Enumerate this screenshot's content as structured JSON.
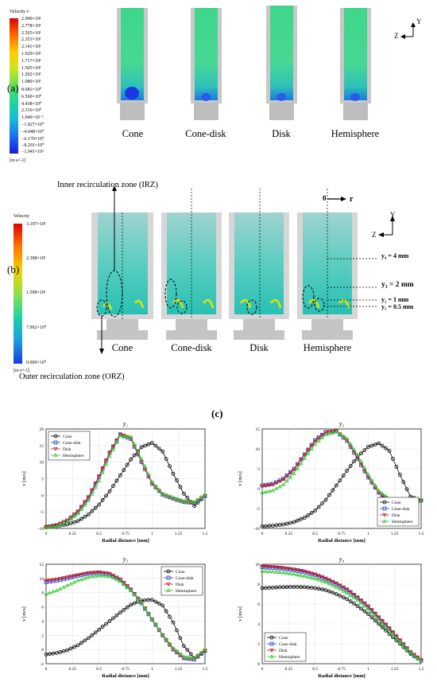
{
  "panel_a": {
    "letter": "(a)",
    "colorbar": {
      "title": "Velocity v",
      "unit": "[m s^-1]",
      "ticks": [
        "2.990×10¹",
        "2.778×10¹",
        "2.565×10¹",
        "2.353×10¹",
        "2.141×10¹",
        "1.929×10¹",
        "1.717×10¹",
        "1.505×10¹",
        "1.292×10¹",
        "1.080×10¹",
        "8.681×10⁰",
        "6.560×10⁰",
        "4.438×10⁰",
        "2.316×10⁰",
        "1.949×10⁻¹",
        "−1.927×10⁰",
        "−4.048×10⁰",
        "−6.170×10⁰",
        "−8.291×10⁰",
        "−1.041×10¹"
      ]
    },
    "labels": [
      "Cone",
      "Cone-disk",
      "Disk",
      "Hemisphere"
    ],
    "axis": {
      "y": "Y",
      "z": "Z"
    }
  },
  "panel_b": {
    "letter": "(b)",
    "colorbar": {
      "title": "Velocity",
      "unit": "[m s^-1]",
      "ticks": [
        "3.197×10¹",
        "2.398×10¹",
        "1.598×10¹",
        "7.992×10⁰",
        "0.000×10⁰"
      ]
    },
    "labels": [
      "Cone",
      "Cone-disk",
      "Disk",
      "Hemisphere"
    ],
    "irz": "Inner recirculation zone (IRZ)",
    "orz": "Outer recirculation zone (ORZ)",
    "origin": "0",
    "r": "r",
    "axis": {
      "y": "Y",
      "z": "Z"
    },
    "levels": [
      "y₄ = 4 mm",
      "y₃ = 2 mm",
      "y₂ = 1 mm",
      "y₁ = 0.5 mm"
    ]
  },
  "panel_c": {
    "letter": "(c)"
  },
  "chart_data": [
    {
      "type": "line",
      "title": "y₁",
      "xlabel": "Radial distance [mm]",
      "ylabel": "v [m/s]",
      "xlim": [
        0,
        1.5
      ],
      "ylim": [
        -10,
        20
      ],
      "xticks": [
        0,
        0.25,
        0.5,
        0.75,
        1,
        1.25,
        1.5
      ],
      "yticks": [
        -10,
        -5,
        0,
        5,
        10,
        15,
        20
      ],
      "legend": "top-left",
      "x": [
        0,
        0.1,
        0.2,
        0.3,
        0.4,
        0.5,
        0.6,
        0.7,
        0.8,
        0.9,
        1.0,
        1.1,
        1.2,
        1.3,
        1.4,
        1.5
      ],
      "series": [
        {
          "name": "Cone",
          "color": "#000000",
          "values": [
            -9.5,
            -9.3,
            -8.8,
            -7.8,
            -5.8,
            -2.8,
            1.2,
            6.0,
            10.8,
            14.5,
            15.8,
            13.2,
            6.5,
            0.5,
            -3.2,
            -0.2
          ]
        },
        {
          "name": "Cone-disk",
          "color": "#1f3fd1",
          "values": [
            -9.6,
            -9.0,
            -7.6,
            -5.0,
            -0.8,
            5.5,
            12.8,
            18.2,
            17.0,
            10.0,
            3.5,
            0.2,
            -1.0,
            -2.0,
            -2.3,
            -0.2
          ]
        },
        {
          "name": "Disk",
          "color": "#d01919",
          "values": [
            -9.6,
            -9.0,
            -7.5,
            -4.8,
            -0.5,
            5.8,
            13.0,
            18.5,
            17.2,
            10.2,
            3.6,
            0.3,
            -1.0,
            -2.0,
            -2.2,
            -0.1
          ]
        },
        {
          "name": "Hemisphere",
          "color": "#33cc33",
          "values": [
            -9.8,
            -9.3,
            -8.0,
            -5.6,
            -1.6,
            4.4,
            11.8,
            18.0,
            17.6,
            11.0,
            4.0,
            0.5,
            -0.8,
            -1.8,
            -2.0,
            0.0
          ]
        }
      ]
    },
    {
      "type": "line",
      "title": "y₂",
      "xlabel": "Radial distance [mm]",
      "ylabel": "v [m/s]",
      "xlim": [
        0,
        1.5
      ],
      "ylim": [
        -10,
        15
      ],
      "xticks": [
        0,
        0.25,
        0.5,
        0.75,
        1,
        1.25,
        1.5
      ],
      "yticks": [
        -10,
        -5,
        0,
        5,
        10,
        15
      ],
      "legend": "bottom-right",
      "x": [
        0,
        0.1,
        0.2,
        0.3,
        0.4,
        0.5,
        0.6,
        0.7,
        0.8,
        0.9,
        1.0,
        1.1,
        1.2,
        1.3,
        1.4,
        1.5
      ],
      "series": [
        {
          "name": "Cone",
          "color": "#000000",
          "values": [
            -9.5,
            -9.3,
            -9.0,
            -8.4,
            -7.3,
            -5.5,
            -2.8,
            0.8,
            4.5,
            8.0,
            10.5,
            11.4,
            9.5,
            3.5,
            -2.0,
            -3.0
          ]
        },
        {
          "name": "Cone-disk",
          "color": "#1f3fd1",
          "values": [
            0.8,
            1.2,
            2.5,
            5.0,
            8.6,
            12.2,
            14.2,
            14.4,
            12.0,
            7.5,
            2.8,
            -1.0,
            -3.0,
            -3.5,
            -3.3,
            -3.0
          ]
        },
        {
          "name": "Disk",
          "color": "#d01919",
          "values": [
            0.6,
            1.0,
            2.3,
            4.8,
            8.5,
            12.0,
            14.2,
            14.5,
            12.2,
            7.8,
            3.0,
            -1.0,
            -3.2,
            -3.6,
            -3.4,
            -3.0
          ]
        },
        {
          "name": "Hemisphere",
          "color": "#33cc33",
          "values": [
            -1.0,
            -0.5,
            1.0,
            3.8,
            7.6,
            11.2,
            13.6,
            14.3,
            12.6,
            8.5,
            3.6,
            -0.5,
            -2.6,
            -3.3,
            -3.2,
            -3.0
          ]
        }
      ]
    },
    {
      "type": "line",
      "title": "y₃",
      "xlabel": "Radial distance [mm]",
      "ylabel": "v [m/s]",
      "xlim": [
        0,
        1.5
      ],
      "ylim": [
        -2,
        12
      ],
      "xticks": [
        0,
        0.25,
        0.5,
        0.75,
        1,
        1.25,
        1.5
      ],
      "yticks": [
        -2,
        0,
        2,
        4,
        6,
        8,
        10,
        12
      ],
      "legend": "top-right",
      "x": [
        0,
        0.1,
        0.2,
        0.3,
        0.4,
        0.5,
        0.6,
        0.7,
        0.8,
        0.9,
        1.0,
        1.1,
        1.2,
        1.3,
        1.4,
        1.5
      ],
      "series": [
        {
          "name": "Cone",
          "color": "#000000",
          "values": [
            -0.7,
            -0.5,
            -0.1,
            0.6,
            1.6,
            2.8,
            4.0,
            5.2,
            6.3,
            6.9,
            7.0,
            6.2,
            3.8,
            0.5,
            -1.2,
            -0.2
          ]
        },
        {
          "name": "Cone-disk",
          "color": "#1f3fd1",
          "values": [
            9.5,
            9.7,
            10.0,
            10.4,
            10.7,
            10.8,
            10.6,
            9.8,
            8.4,
            6.5,
            4.2,
            2.0,
            0.0,
            -1.2,
            -1.4,
            -0.2
          ]
        },
        {
          "name": "Disk",
          "color": "#d01919",
          "values": [
            9.7,
            9.9,
            10.2,
            10.5,
            10.8,
            10.9,
            10.7,
            9.9,
            8.5,
            6.6,
            4.3,
            2.0,
            0.0,
            -1.2,
            -1.3,
            -0.1
          ]
        },
        {
          "name": "Hemisphere",
          "color": "#33cc33",
          "values": [
            7.8,
            8.3,
            9.0,
            9.7,
            10.2,
            10.4,
            10.3,
            9.6,
            8.3,
            6.5,
            4.3,
            2.1,
            0.2,
            -1.0,
            -1.2,
            0.0
          ]
        }
      ]
    },
    {
      "type": "line",
      "title": "y₄",
      "xlabel": "Radial distance [mm]",
      "ylabel": "v [m/s]",
      "xlim": [
        0,
        1.5
      ],
      "ylim": [
        0,
        10
      ],
      "xticks": [
        0,
        0.25,
        0.5,
        0.75,
        1,
        1.25,
        1.5
      ],
      "yticks": [
        0,
        2,
        4,
        6,
        8,
        10
      ],
      "legend": "bottom-left",
      "x": [
        0,
        0.1,
        0.2,
        0.3,
        0.4,
        0.5,
        0.6,
        0.7,
        0.8,
        0.9,
        1.0,
        1.1,
        1.2,
        1.3,
        1.4,
        1.5
      ],
      "series": [
        {
          "name": "Cone",
          "color": "#000000",
          "values": [
            7.6,
            7.65,
            7.7,
            7.72,
            7.7,
            7.6,
            7.4,
            7.0,
            6.5,
            5.8,
            5.0,
            4.0,
            3.0,
            2.0,
            1.0,
            0.3
          ]
        },
        {
          "name": "Cone-disk",
          "color": "#1f3fd1",
          "values": [
            9.7,
            9.65,
            9.55,
            9.4,
            9.2,
            8.9,
            8.5,
            8.0,
            7.4,
            6.6,
            5.7,
            4.6,
            3.5,
            2.3,
            1.1,
            0.3
          ]
        },
        {
          "name": "Disk",
          "color": "#d01919",
          "values": [
            9.8,
            9.75,
            9.65,
            9.5,
            9.3,
            9.0,
            8.6,
            8.1,
            7.5,
            6.7,
            5.8,
            4.7,
            3.6,
            2.4,
            1.2,
            0.4
          ]
        },
        {
          "name": "Hemisphere",
          "color": "#33cc33",
          "values": [
            9.3,
            9.25,
            9.15,
            9.0,
            8.8,
            8.55,
            8.2,
            7.7,
            7.1,
            6.4,
            5.5,
            4.4,
            3.3,
            2.2,
            1.1,
            0.3
          ]
        }
      ]
    }
  ]
}
